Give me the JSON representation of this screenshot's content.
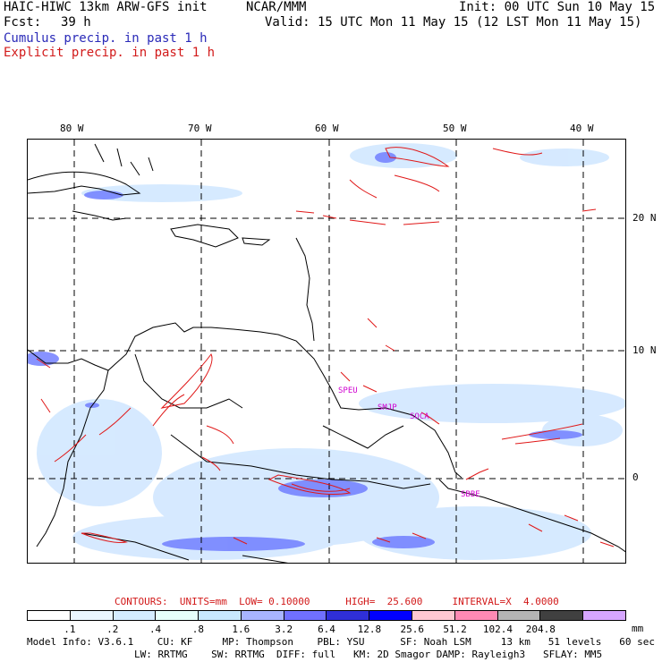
{
  "header": {
    "model_title": "HAIC-HIWC 13km ARW-GFS init",
    "org": "NCAR/MMM",
    "init": "Init: 00 UTC Sun 10 May 15",
    "fcst_label": "Fcst:",
    "fcst_value": "39 h",
    "valid": "Valid: 15 UTC Mon 11 May 15 (12 LST Mon 11 May 15)",
    "field1": "Cumulus precip. in past 1 h",
    "field2": "Explicit precip. in past 1 h"
  },
  "map": {
    "lon_labels": [
      "80 W",
      "70 W",
      "60 W",
      "50 W",
      "40 W"
    ],
    "lat_labels": [
      "20 N",
      "10 N",
      "0"
    ],
    "stations": [
      "SPEU",
      "SMJP",
      "SOCA",
      "SBBE"
    ],
    "colors": {
      "cumulus": "#3a3ae6",
      "explicit": "#e01818",
      "coast": "#000000",
      "grid": "#000000"
    }
  },
  "contours": {
    "text": "CONTOURS:  UNITS=mm  LOW= 0.10000      HIGH=  25.600     INTERVAL=X  4.0000"
  },
  "colorbar": {
    "labels": [
      ".1",
      ".2",
      ".4",
      ".8",
      "1.6",
      "3.2",
      "6.4",
      "12.8",
      "25.6",
      "51.2",
      "102.4",
      "204.8"
    ],
    "units": "mm",
    "colors": [
      "#ffffff",
      "#eaf6ff",
      "#d4ecff",
      "#e6fffa",
      "#c8e8ff",
      "#a8b4ff",
      "#7070ff",
      "#2f2fd8",
      "#0000ff",
      "#ffc8d2",
      "#ff8ab4",
      "#b4b4b4",
      "#404040",
      "#d6a6ff"
    ]
  },
  "footer": {
    "line1": "Model Info: V3.6.1    CU: KF     MP: Thompson    PBL: YSU      SF: Noah LSM     13 km   51 levels   60 sec",
    "line2": "LW: RRTMG    SW: RRTMG  DIFF: full   KM: 2D Smagor DAMP: Rayleigh3   SFLAY: MM5"
  }
}
